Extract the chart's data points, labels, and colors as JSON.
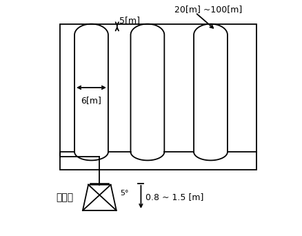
{
  "bg_color": "#ffffff",
  "line_color": "#000000",
  "fig_width": 4.38,
  "fig_height": 3.42,
  "dpi": 100,
  "label_20_100": "20[m] ~100[m]",
  "label_5m": "5[m]",
  "label_6m": "6[m]",
  "label_det": "검출부",
  "label_5deg": "5°",
  "label_height": "0.8 ~ 1.5 [m]",
  "font_size_main": 10,
  "font_size_small": 9
}
